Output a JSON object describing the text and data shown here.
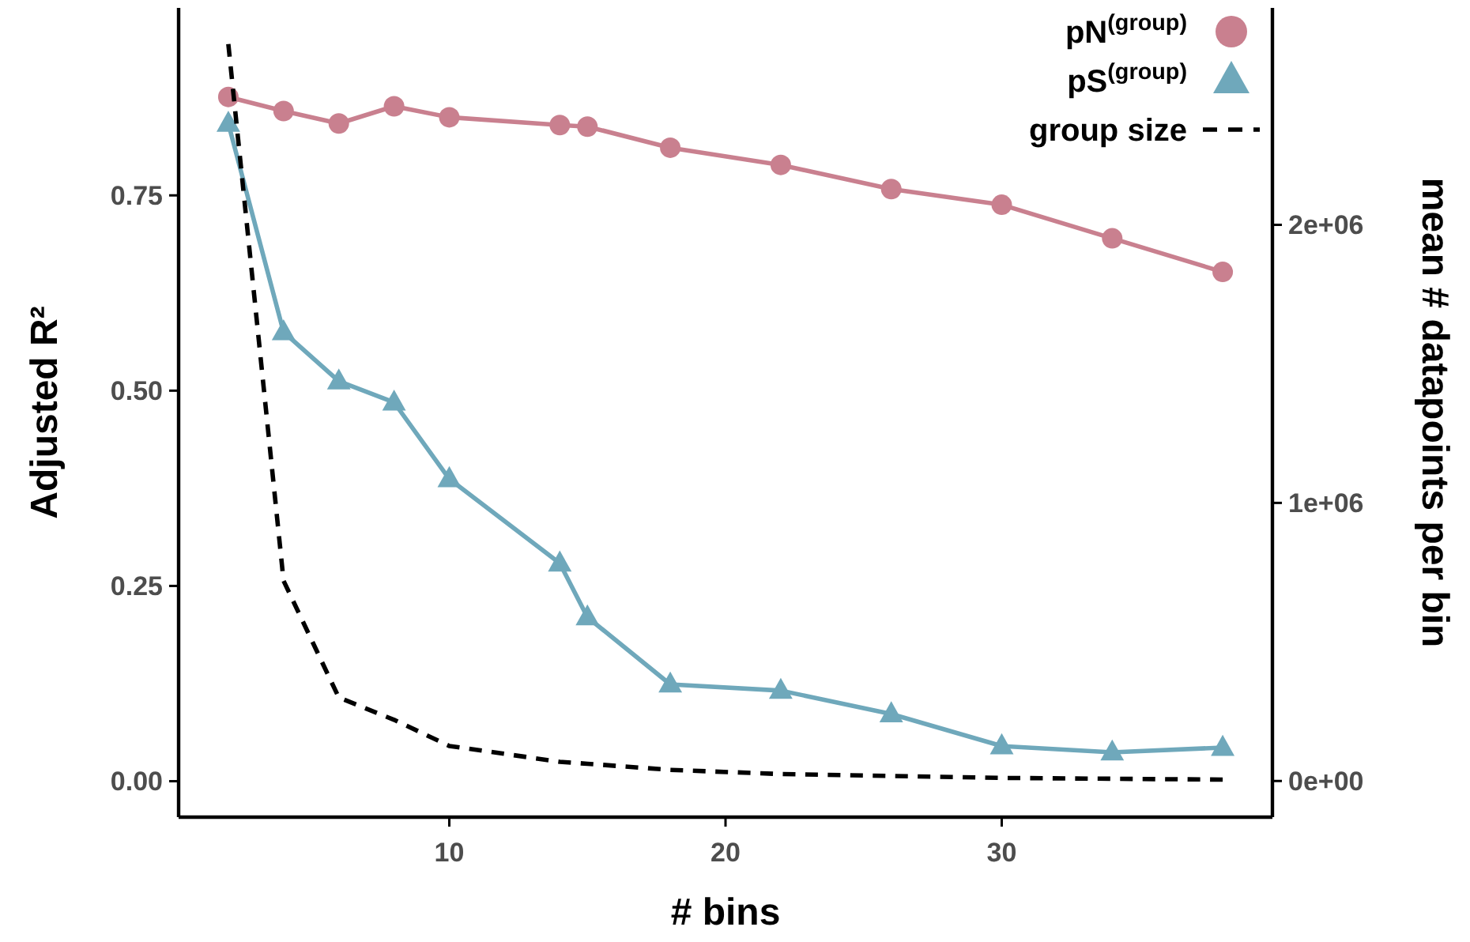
{
  "chart_data": {
    "type": "line",
    "xlabel": "# bins",
    "ylabel": "Adjusted R²",
    "y2label": "mean # datapoints per bin",
    "x": [
      2,
      4,
      6,
      8,
      10,
      14,
      15,
      18,
      22,
      26,
      30,
      34,
      38
    ],
    "series": [
      {
        "name": "pN$^{(group)}$",
        "color": "#c9808f",
        "marker": "circle",
        "values": [
          0.876,
          0.858,
          0.842,
          0.864,
          0.85,
          0.84,
          0.838,
          0.811,
          0.789,
          0.758,
          0.738,
          0.695,
          0.652
        ]
      },
      {
        "name": "pS$^{(group)}$",
        "color": "#6fa8bb",
        "marker": "triangle",
        "values": [
          0.842,
          0.575,
          0.512,
          0.485,
          0.387,
          0.279,
          0.21,
          0.124,
          0.116,
          0.086,
          0.045,
          0.037,
          0.043
        ]
      },
      {
        "name": "group size",
        "color": "#000000",
        "marker": "none",
        "line_style": "dashed",
        "axis": "y2",
        "values": [
          2650000,
          720000,
          300000,
          220000,
          126000,
          69000,
          62000,
          40000,
          25000,
          18000,
          11000,
          8000,
          5000
        ]
      }
    ],
    "xlim": [
      0.2,
      39.8
    ],
    "xticks": [
      10,
      20,
      30
    ],
    "ylim": [
      -0.046,
      0.99
    ],
    "yticks": [
      {
        "value": 0,
        "label": "0.00"
      },
      {
        "value": 0.25,
        "label": "0.25"
      },
      {
        "value": 0.5,
        "label": "0.50"
      },
      {
        "value": 0.75,
        "label": "0.75"
      }
    ],
    "y2lim": [
      -130000,
      2780000
    ],
    "y2ticks": [
      {
        "value": 0,
        "label": "0e+00"
      },
      {
        "value": 1000000,
        "label": "1e+06"
      },
      {
        "value": 2000000,
        "label": "2e+06"
      }
    ],
    "legend": "top right",
    "grid": false
  }
}
